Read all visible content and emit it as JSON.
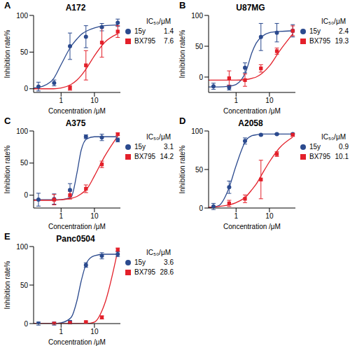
{
  "chart_data": [
    {
      "type": "scatter",
      "title": "A172",
      "annotations": [
        "A"
      ],
      "x_label": "Concentration /μM",
      "y_label": "Inhibition rate%",
      "log": "x",
      "xlim": [
        0.15,
        60
      ],
      "xticks": [
        1,
        10
      ],
      "ylim": [
        -5,
        100
      ],
      "yticks": [
        0,
        50,
        100
      ],
      "legend": "right",
      "legend_title": "IC₅₀/μM",
      "series": [
        {
          "name": "15y",
          "color": "#2b4a8e",
          "marker": "circle",
          "ic50": 1.4,
          "x": [
            0.21,
            0.62,
            1.85,
            5.56,
            16.7,
            50
          ],
          "values": [
            3,
            8,
            58,
            71,
            84,
            90
          ],
          "errors": [
            6,
            4,
            18,
            15,
            5,
            5
          ],
          "fit_x": [
            0.15,
            0.3,
            0.6,
            1,
            2,
            3,
            4,
            6,
            10,
            20,
            50
          ],
          "fit": [
            1,
            4,
            14,
            33,
            58,
            68,
            74,
            79,
            83,
            86,
            87
          ]
        },
        {
          "name": "BX795",
          "color": "#e3202a",
          "marker": "square",
          "ic50": 7.6,
          "x": [
            1.85,
            5.56,
            16.7,
            50
          ],
          "values": [
            1,
            32,
            63,
            78
          ],
          "errors": [
            3,
            20,
            20,
            8
          ],
          "fit_x": [
            0.15,
            0.3,
            0.6,
            1,
            2,
            3,
            4,
            6,
            10,
            20,
            50
          ],
          "fit": [
            0,
            0,
            0,
            1,
            6,
            12,
            18,
            29,
            45,
            63,
            75
          ]
        }
      ]
    },
    {
      "type": "scatter",
      "title": "U87MG",
      "annotations": [
        "B"
      ],
      "x_label": "Concentration /μM",
      "y_label": "Inhibition rate%",
      "log": "x",
      "xlim": [
        0.15,
        60
      ],
      "xticks": [
        1,
        10
      ],
      "ylim": [
        -25,
        100
      ],
      "yticks": [
        0,
        50,
        100
      ],
      "legend": "right",
      "legend_title": "IC₅₀/μM",
      "series": [
        {
          "name": "15y",
          "color": "#2b4a8e",
          "marker": "circle",
          "ic50": 2.4,
          "x": [
            0.21,
            0.62,
            1.85,
            5.56,
            16.7,
            50
          ],
          "values": [
            -15,
            -17,
            15,
            65,
            72,
            75
          ],
          "errors": [
            5,
            4,
            8,
            22,
            15,
            10
          ],
          "fit_x": [
            0.15,
            0.3,
            0.6,
            1,
            2,
            3,
            4,
            6,
            10,
            20,
            50
          ],
          "fit": [
            -16,
            -16,
            -15,
            -12,
            10,
            40,
            55,
            66,
            72,
            74,
            75
          ]
        },
        {
          "name": "BX795",
          "color": "#e3202a",
          "marker": "square",
          "ic50": 19.3,
          "x": [
            0.62,
            1.85,
            5.56,
            16.7,
            50
          ],
          "values": [
            -2,
            -5,
            14,
            42,
            75
          ],
          "errors": [
            12,
            10,
            6,
            5,
            8
          ],
          "fit_x": [
            0.15,
            0.3,
            0.6,
            1,
            2,
            3,
            4,
            6,
            10,
            20,
            50
          ],
          "fit": [
            -5,
            -5,
            -5,
            -5,
            -4,
            -2,
            0,
            6,
            18,
            42,
            70
          ]
        }
      ]
    },
    {
      "type": "scatter",
      "title": "A375",
      "annotations": [
        "C"
      ],
      "x_label": "Concentration /μM",
      "y_label": "Inhibition rate%",
      "log": "x",
      "xlim": [
        0.15,
        60
      ],
      "xticks": [
        1,
        10
      ],
      "ylim": [
        -20,
        100
      ],
      "yticks": [
        0,
        50,
        100
      ],
      "legend": "right",
      "legend_title": "IC₅₀/μM",
      "series": [
        {
          "name": "15y",
          "color": "#2b4a8e",
          "marker": "circle",
          "ic50": 3.1,
          "x": [
            0.21,
            0.62,
            1.85,
            5.56,
            16.7,
            50
          ],
          "values": [
            -7,
            -6,
            8,
            91,
            90,
            86
          ],
          "errors": [
            10,
            8,
            10,
            3,
            5,
            3
          ],
          "fit_x": [
            0.15,
            0.3,
            0.6,
            1,
            2,
            3,
            4,
            6,
            10,
            20,
            50
          ],
          "fit": [
            -7,
            -7,
            -7,
            -7,
            -3,
            35,
            70,
            88,
            91,
            91,
            91
          ]
        },
        {
          "name": "BX795",
          "color": "#e3202a",
          "marker": "square",
          "ic50": 14.2,
          "x": [
            0.62,
            1.85,
            5.56,
            16.7,
            50
          ],
          "values": [
            -7,
            0,
            10,
            48,
            95
          ],
          "errors": [
            8,
            6,
            6,
            5,
            2
          ],
          "fit_x": [
            0.15,
            0.3,
            0.6,
            1,
            2,
            3,
            4,
            6,
            10,
            20,
            50
          ],
          "fit": [
            -8,
            -8,
            -8,
            -7,
            -5,
            -2,
            2,
            10,
            30,
            60,
            92
          ]
        }
      ]
    },
    {
      "type": "scatter",
      "title": "A2058",
      "annotations": [
        "D"
      ],
      "x_label": "Concentration /μM",
      "y_label": "Inhibition rate%",
      "log": "x",
      "xlim": [
        0.15,
        60
      ],
      "xticks": [
        1,
        10
      ],
      "ylim": [
        0,
        100
      ],
      "yticks": [
        0,
        50,
        100
      ],
      "legend": "right",
      "legend_title": "IC₅₀/μM",
      "series": [
        {
          "name": "15y",
          "color": "#2b4a8e",
          "marker": "circle",
          "ic50": 0.9,
          "x": [
            0.21,
            0.62,
            1.85,
            5.56,
            16.7,
            50
          ],
          "values": [
            2,
            27,
            87,
            95,
            96,
            96
          ],
          "errors": [
            4,
            8,
            4,
            1,
            1,
            1
          ],
          "fit_x": [
            0.15,
            0.3,
            0.6,
            1,
            2,
            3,
            4,
            6,
            10,
            20,
            50
          ],
          "fit": [
            0,
            3,
            25,
            55,
            88,
            94,
            95,
            96,
            96,
            96,
            96
          ]
        },
        {
          "name": "BX795",
          "color": "#e3202a",
          "marker": "square",
          "ic50": 10.1,
          "x": [
            0.62,
            1.85,
            5.56,
            16.7,
            50
          ],
          "values": [
            6,
            12,
            37,
            70,
            95
          ],
          "errors": [
            4,
            5,
            25,
            3,
            2
          ],
          "fit_x": [
            0.15,
            0.3,
            0.6,
            1,
            2,
            3,
            4,
            6,
            10,
            20,
            50
          ],
          "fit": [
            1,
            2,
            4,
            7,
            15,
            24,
            31,
            44,
            60,
            78,
            92
          ]
        }
      ]
    },
    {
      "type": "scatter",
      "title": "Panc0504",
      "annotations": [
        "E"
      ],
      "x_label": "Concentration /μM",
      "y_label": "Inhibition rate%",
      "log": "x",
      "xlim": [
        0.15,
        60
      ],
      "xticks": [
        1,
        10
      ],
      "ylim": [
        0,
        100
      ],
      "yticks": [
        0,
        50,
        100
      ],
      "legend": "right",
      "legend_title": "IC₅₀/μM",
      "series": [
        {
          "name": "15y",
          "color": "#2b4a8e",
          "marker": "circle",
          "ic50": 3.6,
          "x": [
            0.21,
            0.62,
            1.85,
            5.56,
            16.7,
            50
          ],
          "values": [
            0,
            0,
            2,
            76,
            88,
            90
          ],
          "errors": [
            2,
            2,
            2,
            3,
            4,
            3
          ],
          "fit_x": [
            0.15,
            0.3,
            0.6,
            1,
            2,
            3,
            4,
            6,
            10,
            20,
            50
          ],
          "fit": [
            0,
            0,
            0,
            1,
            8,
            30,
            55,
            80,
            88,
            90,
            90
          ]
        },
        {
          "name": "BX795",
          "color": "#e3202a",
          "marker": "square",
          "ic50": 28.6,
          "x": [
            0.62,
            1.85,
            5.56,
            16.7,
            50
          ],
          "values": [
            0,
            1,
            2,
            8,
            96
          ],
          "errors": [
            1,
            1,
            1,
            2,
            2
          ],
          "fit_x": [
            0.15,
            0.3,
            0.6,
            1,
            2,
            3,
            4,
            6,
            10,
            20,
            50
          ],
          "fit": [
            0,
            0,
            0,
            0,
            0,
            0,
            0,
            0,
            2,
            25,
            95
          ]
        }
      ]
    }
  ]
}
